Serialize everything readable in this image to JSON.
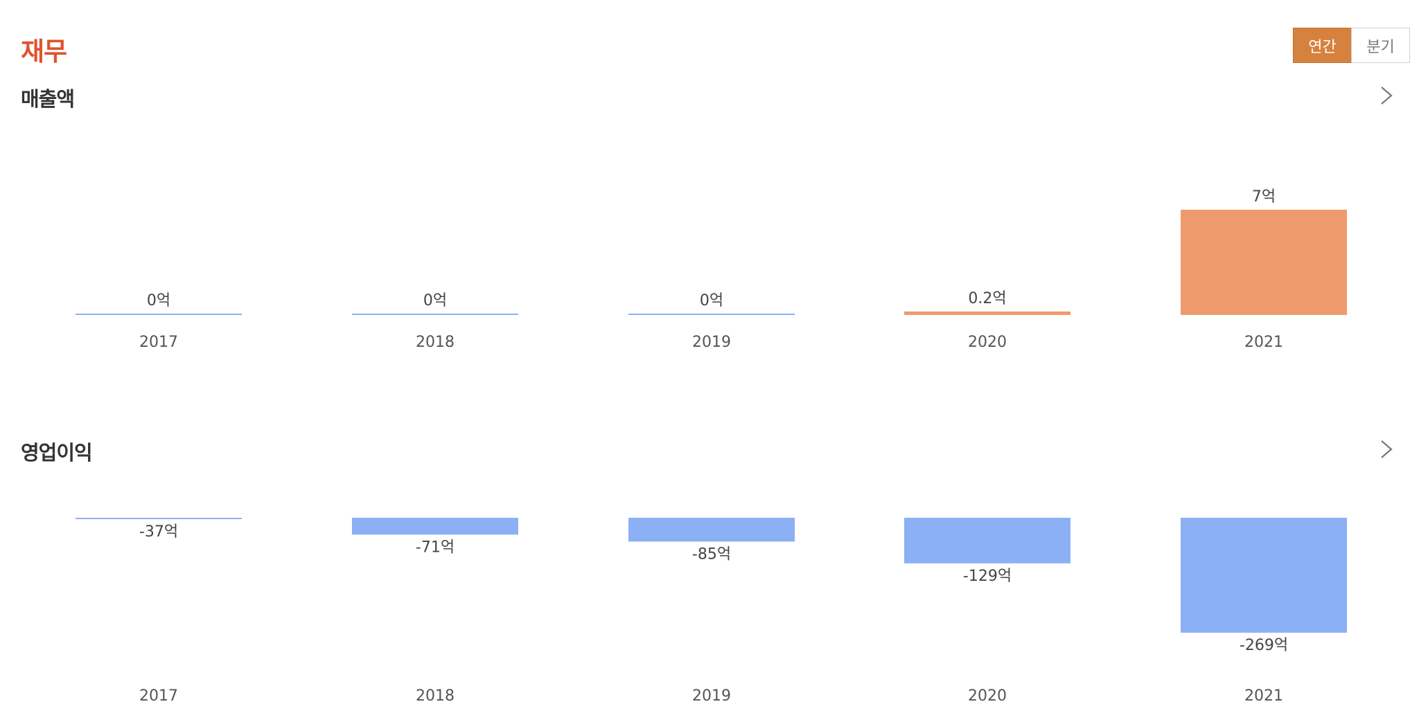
{
  "page": {
    "title": "재무"
  },
  "toggle": {
    "annual_label": "연간",
    "quarter_label": "분기",
    "selected": "annual"
  },
  "colors": {
    "accent": "#e0522e",
    "toggle_active": "#d6823e",
    "positive_bar": "#ef9a6d",
    "neutral_bar": "#8bb0f5",
    "negative_bar": "#8bb0f5"
  },
  "chart_data": [
    {
      "type": "bar",
      "title": "매출액",
      "categories": [
        "2017",
        "2018",
        "2019",
        "2020",
        "2021"
      ],
      "values": [
        0,
        0,
        0,
        0.2,
        7
      ],
      "labels": [
        "0억",
        "0억",
        "0억",
        "0.2억",
        "7억"
      ],
      "unit": "억",
      "ylim": [
        0,
        7
      ]
    },
    {
      "type": "bar",
      "title": "영업이익",
      "categories": [
        "2017",
        "2018",
        "2019",
        "2020",
        "2021"
      ],
      "values": [
        -37,
        -71,
        -85,
        -129,
        -269
      ],
      "labels": [
        "-37억",
        "-71억",
        "-85억",
        "-129억",
        "-269억"
      ],
      "unit": "억",
      "ylim": [
        -269,
        0
      ]
    }
  ]
}
